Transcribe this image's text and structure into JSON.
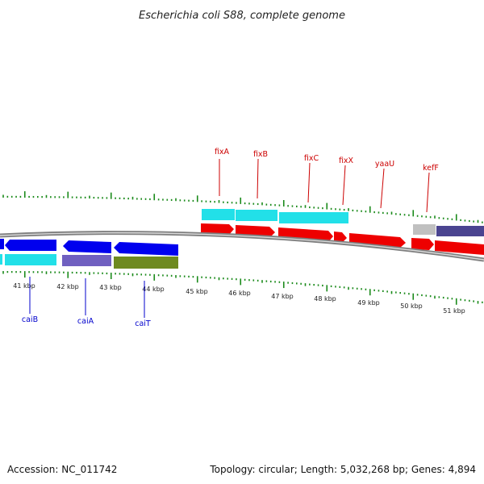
{
  "title": "Escherichia coli S88, complete genome",
  "footer": {
    "accession": "Accession: NC_011742",
    "topology": "Topology: circular; Length: 5,032,268 bp; Genes: 4,894"
  },
  "kbp_labels": [
    "41 kbp",
    "42 kbp",
    "43 kbp",
    "44 kbp",
    "45 kbp",
    "46 kbp",
    "47 kbp",
    "48 kbp",
    "49 kbp",
    "50 kbp",
    "51 kbp"
  ],
  "forward_gene_labels": [
    "fixA",
    "fixB",
    "fixC",
    "fixX",
    "yaaU",
    "kefF"
  ],
  "reverse_gene_labels": [
    "caiB",
    "caiA",
    "caiT"
  ],
  "colors": {
    "forward_gene": "#ee0000",
    "reverse_gene": "#0000ee",
    "cds_cyan": "#22e0e8",
    "cds_purple": "#7060c0",
    "cds_olive": "#6e8a20",
    "cds_gray": "#c0c0c0",
    "cds_darkpurple": "#4a4490",
    "ticks": "#1a8a1a",
    "backbone": "#7f7f7f"
  }
}
